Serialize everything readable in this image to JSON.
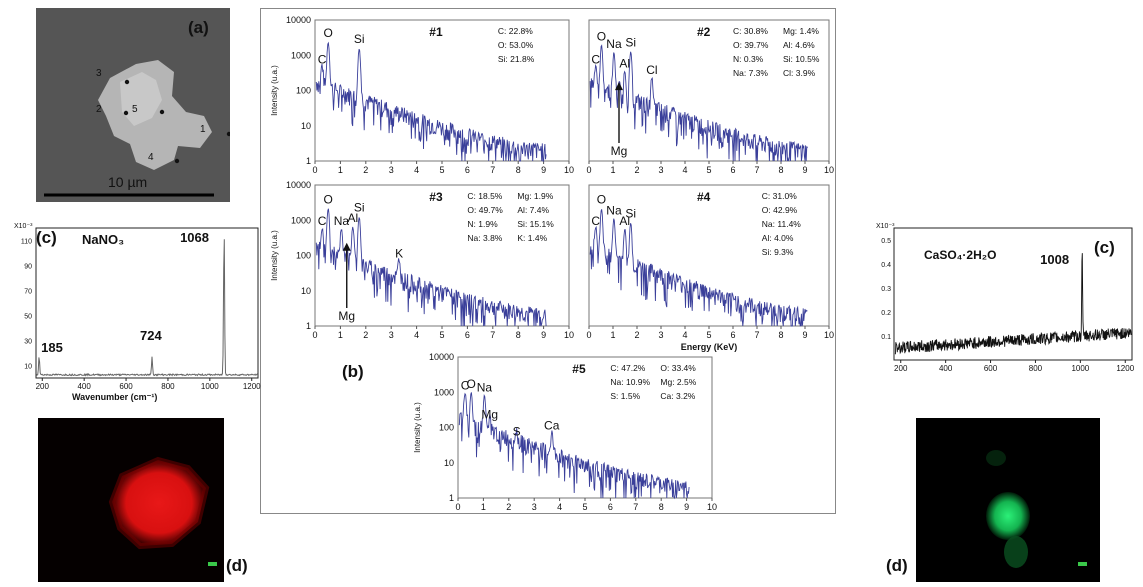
{
  "figure": {
    "panel_a": {
      "label": "(a)",
      "scale_bar_text": "10 µm",
      "points": [
        "1",
        "2",
        "3",
        "4",
        "5"
      ]
    },
    "panel_b": {
      "label": "(b)",
      "ylabel": "Intensity (u.a.)",
      "xlabel": "Energy (KeV)"
    },
    "panel_c_left": {
      "label": "(c)",
      "compound": "NaNO₃",
      "exponent_label": "X10⁻³",
      "xlabel": "Wavenumber (cm⁻¹)",
      "peaks": [
        "185",
        "724",
        "1068"
      ]
    },
    "panel_c_right": {
      "label": "(c)",
      "compound": "CaSO₄·2H₂O",
      "exponent_label": "X10⁻³",
      "peaks": [
        "1008"
      ]
    },
    "panel_d_left": {
      "label": "(d)",
      "color": "#e41414"
    },
    "panel_d_right": {
      "label": "(d)",
      "color": "#22d06a"
    }
  },
  "chart_data": [
    {
      "type": "line",
      "id": "#1",
      "xlabel": "",
      "ylabel": "Intensity (u.a.)",
      "xlim": [
        0,
        10
      ],
      "ylim": [
        1,
        10000
      ],
      "y_scale": "log",
      "x_ticks": [
        "0",
        "1",
        "2",
        "3",
        "4",
        "5",
        "6",
        "7",
        "8",
        "9",
        "10"
      ],
      "y_ticks": [
        "1",
        "10",
        "100",
        "1000",
        "10000"
      ],
      "peaks": [
        {
          "label": "C",
          "x": 0.28,
          "y": 400
        },
        {
          "label": "O",
          "x": 0.52,
          "y": 2200
        },
        {
          "label": "Si",
          "x": 1.74,
          "y": 1500
        }
      ],
      "composition": [
        "C: 22.8%",
        "O: 53.0%",
        "Si: 21.8%"
      ],
      "series_color": "#3a3f9a"
    },
    {
      "type": "line",
      "id": "#2",
      "xlabel": "",
      "ylabel": "",
      "xlim": [
        0,
        10
      ],
      "ylim": [
        1,
        10000
      ],
      "y_scale": "log",
      "x_ticks": [
        "0",
        "1",
        "2",
        "3",
        "4",
        "5",
        "6",
        "7",
        "8",
        "9",
        "10"
      ],
      "y_ticks": [],
      "peaks": [
        {
          "label": "C",
          "x": 0.28,
          "y": 400
        },
        {
          "label": "O",
          "x": 0.52,
          "y": 1800
        },
        {
          "label": "Na",
          "x": 1.04,
          "y": 1100
        },
        {
          "label": "Al",
          "x": 1.49,
          "y": 300
        },
        {
          "label": "Si",
          "x": 1.74,
          "y": 1200
        },
        {
          "label": "Cl",
          "x": 2.62,
          "y": 200
        },
        {
          "label": "Mg",
          "x": 1.25,
          "y": 90
        }
      ],
      "composition": [
        "C: 30.8%",
        "Mg: 1.4%",
        "O: 39.7%",
        "Al: 4.6%",
        "N: 0.3%",
        "Si: 10.5%",
        "Na: 7.3%",
        "Cl: 3.9%"
      ],
      "series_color": "#3a3f9a"
    },
    {
      "type": "line",
      "id": "#3",
      "xlabel": "",
      "ylabel": "Intensity (u.a.)",
      "xlim": [
        0,
        10
      ],
      "ylim": [
        1,
        10000
      ],
      "y_scale": "log",
      "x_ticks": [
        "0",
        "1",
        "2",
        "3",
        "4",
        "5",
        "6",
        "7",
        "8",
        "9",
        "10"
      ],
      "y_ticks": [
        "1",
        "10",
        "100",
        "1000",
        "10000"
      ],
      "peaks": [
        {
          "label": "C",
          "x": 0.28,
          "y": 500
        },
        {
          "label": "O",
          "x": 0.52,
          "y": 2000
        },
        {
          "label": "Na",
          "x": 1.04,
          "y": 500
        },
        {
          "label": "Al",
          "x": 1.49,
          "y": 600
        },
        {
          "label": "Si",
          "x": 1.74,
          "y": 1200
        },
        {
          "label": "K",
          "x": 3.31,
          "y": 60
        },
        {
          "label": "Mg",
          "x": 1.25,
          "y": 120
        }
      ],
      "composition": [
        "C: 18.5%",
        "Mg: 1.9%",
        "O: 49.7%",
        "Al: 7.4%",
        "N: 1.9%",
        "Si: 15.1%",
        "Na: 3.8%",
        "K: 1.4%"
      ],
      "series_color": "#3a3f9a"
    },
    {
      "type": "line",
      "id": "#4",
      "xlabel": "Energy (KeV)",
      "ylabel": "",
      "xlim": [
        0,
        10
      ],
      "ylim": [
        1,
        10000
      ],
      "y_scale": "log",
      "x_ticks": [
        "0",
        "1",
        "2",
        "3",
        "4",
        "5",
        "6",
        "7",
        "8",
        "9",
        "10"
      ],
      "y_ticks": [],
      "peaks": [
        {
          "label": "C",
          "x": 0.28,
          "y": 500
        },
        {
          "label": "O",
          "x": 0.52,
          "y": 2000
        },
        {
          "label": "Na",
          "x": 1.04,
          "y": 1000
        },
        {
          "label": "Al",
          "x": 1.49,
          "y": 500
        },
        {
          "label": "Si",
          "x": 1.74,
          "y": 800
        }
      ],
      "composition": [
        "C: 31.0%",
        "O: 42.9%",
        "Na: 11.4%",
        "Al: 4.0%",
        "Si: 9.3%"
      ],
      "series_color": "#3a3f9a"
    },
    {
      "type": "line",
      "id": "#5",
      "xlabel": "",
      "ylabel": "Intensity (u.a.)",
      "xlim": [
        0,
        10
      ],
      "ylim": [
        1,
        10000
      ],
      "y_scale": "log",
      "x_ticks": [
        "0",
        "1",
        "2",
        "3",
        "4",
        "5",
        "6",
        "7",
        "8",
        "9",
        "10"
      ],
      "y_ticks": [
        "1",
        "10",
        "100",
        "1000",
        "10000"
      ],
      "peaks": [
        {
          "label": "C",
          "x": 0.28,
          "y": 800
        },
        {
          "label": "O",
          "x": 0.52,
          "y": 900
        },
        {
          "label": "Na",
          "x": 1.04,
          "y": 700
        },
        {
          "label": "Mg",
          "x": 1.25,
          "y": 120
        },
        {
          "label": "S",
          "x": 2.31,
          "y": 40
        },
        {
          "label": "Ca",
          "x": 3.69,
          "y": 60
        }
      ],
      "composition": [
        "C: 47.2%",
        "O: 33.4%",
        "Na: 10.9%",
        "Mg: 2.5%",
        "S: 1.5%",
        "Ca: 3.2%"
      ],
      "series_color": "#3a3f9a"
    },
    {
      "type": "line",
      "id": "raman-left",
      "xlabel": "Wavenumber (cm⁻¹)",
      "ylabel": "",
      "xlim": [
        170,
        1230
      ],
      "ylim": [
        0,
        120
      ],
      "x_ticks": [
        "200",
        "400",
        "600",
        "800",
        "1000",
        "1200"
      ],
      "y_ticks": [
        "10",
        "30",
        "50",
        "70",
        "90",
        "110"
      ],
      "peaks": [
        {
          "label": "185",
          "x": 185,
          "y": 15
        },
        {
          "label": "724",
          "x": 724,
          "y": 14
        },
        {
          "label": "1068",
          "x": 1068,
          "y": 118
        }
      ],
      "series_color": "#666666"
    },
    {
      "type": "line",
      "id": "raman-right",
      "xlabel": "",
      "ylabel": "",
      "xlim": [
        170,
        1230
      ],
      "ylim": [
        0,
        0.55
      ],
      "x_ticks": [
        "200",
        "400",
        "600",
        "800",
        "1000",
        "1200"
      ],
      "y_ticks": [
        "0.1",
        "0.2",
        "0.3",
        "0.4",
        "0.5"
      ],
      "peaks": [
        {
          "label": "1008",
          "x": 1008,
          "y": 0.38
        }
      ],
      "series_color": "#111111"
    }
  ]
}
